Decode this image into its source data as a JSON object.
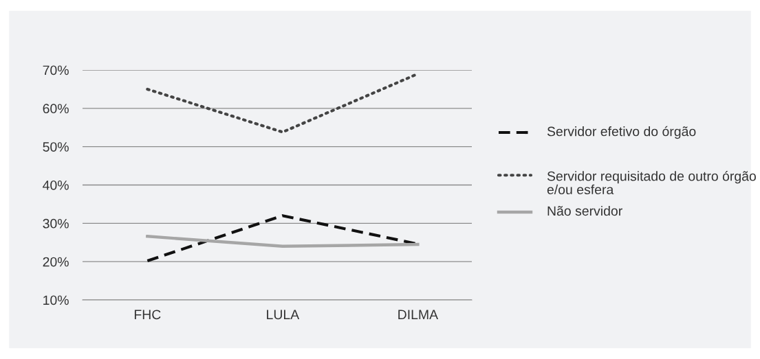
{
  "chart_data": {
    "type": "line",
    "categories": [
      "FHC",
      "LULA",
      "DILMA"
    ],
    "series": [
      {
        "name": "Servidor efetivo do órgão",
        "color": "#111111",
        "line_style": "dashed",
        "values": [
          20.2,
          32.0,
          24.6
        ]
      },
      {
        "name": "Servidor requisitado de outro órgão e/ou esfera",
        "color": "#444444",
        "line_style": "dotted",
        "values": [
          65.0,
          53.8,
          69.0
        ]
      },
      {
        "name": "Não servidor",
        "color": "#a6a6a6",
        "line_style": "solid",
        "values": [
          26.6,
          24.0,
          24.5
        ]
      }
    ],
    "ylim": [
      10,
      70
    ],
    "yticks": [
      {
        "value": 10,
        "label": "10%"
      },
      {
        "value": 20,
        "label": "20%"
      },
      {
        "value": 30,
        "label": "30%"
      },
      {
        "value": 40,
        "label": "40%"
      },
      {
        "value": 50,
        "label": "50%"
      },
      {
        "value": 60,
        "label": "60%"
      },
      {
        "value": 70,
        "label": "70%"
      }
    ],
    "grid": "y",
    "legend": "right",
    "marker": "none"
  }
}
